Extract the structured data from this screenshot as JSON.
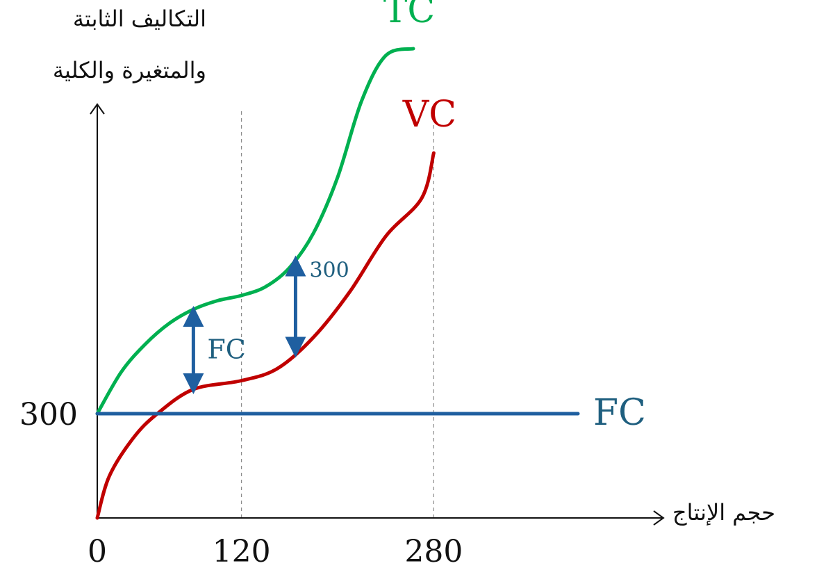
{
  "chart_data": {
    "type": "line",
    "ylabel_lines": [
      "التكاليف الثابتة",
      "والمتغيرة والكلية"
    ],
    "xlabel": "حجم الإنتاج",
    "x_ticks": [
      "0",
      "120",
      "280"
    ],
    "y_ticks": [
      "300"
    ],
    "series": [
      {
        "name": "TC",
        "color": "#00b050",
        "points": [
          [
            0,
            300
          ],
          [
            20,
            420
          ],
          [
            40,
            500
          ],
          [
            60,
            560
          ],
          [
            80,
            600
          ],
          [
            100,
            625
          ],
          [
            120,
            640
          ],
          [
            140,
            665
          ],
          [
            160,
            720
          ],
          [
            180,
            820
          ],
          [
            200,
            980
          ],
          [
            220,
            1200
          ],
          [
            240,
            1330
          ],
          [
            263,
            1350
          ]
        ]
      },
      {
        "name": "VC",
        "color": "#c00000",
        "points": [
          [
            0,
            0
          ],
          [
            10,
            120
          ],
          [
            30,
            230
          ],
          [
            50,
            300
          ],
          [
            80,
            370
          ],
          [
            120,
            395
          ],
          [
            150,
            430
          ],
          [
            180,
            520
          ],
          [
            210,
            650
          ],
          [
            240,
            810
          ],
          [
            270,
            920
          ],
          [
            280,
            1050
          ]
        ]
      },
      {
        "name": "FC",
        "color": "#1f5fa0",
        "points": [
          [
            0,
            300
          ],
          [
            400,
            300
          ]
        ]
      }
    ],
    "annotations": [
      {
        "label": "FC",
        "x": 80
      },
      {
        "label": "300",
        "x": 165
      }
    ],
    "reference_lines_x": [
      120,
      280
    ],
    "xlim": [
      0,
      420
    ],
    "ylim": [
      0,
      1400
    ]
  }
}
